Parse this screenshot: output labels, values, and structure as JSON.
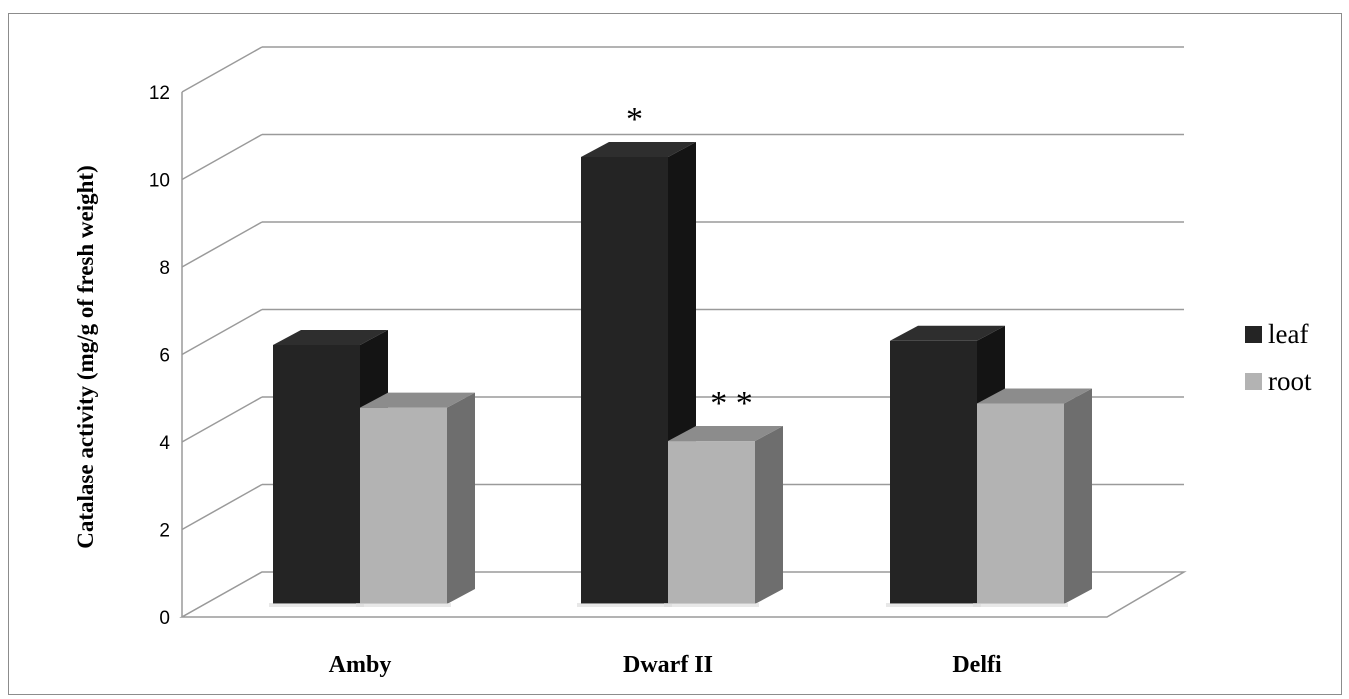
{
  "chart_data": {
    "type": "bar",
    "title": "",
    "xlabel": "",
    "ylabel": "Catalase activity (mg/g of fresh weight)",
    "categories": [
      "Amby",
      "Dwarf II",
      "Delfi"
    ],
    "series": [
      {
        "name": "leaf",
        "values": [
          6.2,
          10.7,
          6.3
        ],
        "color": "#242424"
      },
      {
        "name": "root",
        "values": [
          4.7,
          3.9,
          4.8
        ],
        "color": "#b3b3b3"
      }
    ],
    "ylim": [
      0,
      12
    ],
    "yticks": [
      0,
      2,
      4,
      6,
      8,
      10,
      12
    ],
    "grid": true,
    "legend_position": "right",
    "three_d": true,
    "annotations": [
      {
        "text": "*",
        "category": "Dwarf II",
        "series": "leaf"
      },
      {
        "text": "* *",
        "category": "Dwarf II",
        "series": "root"
      }
    ]
  }
}
